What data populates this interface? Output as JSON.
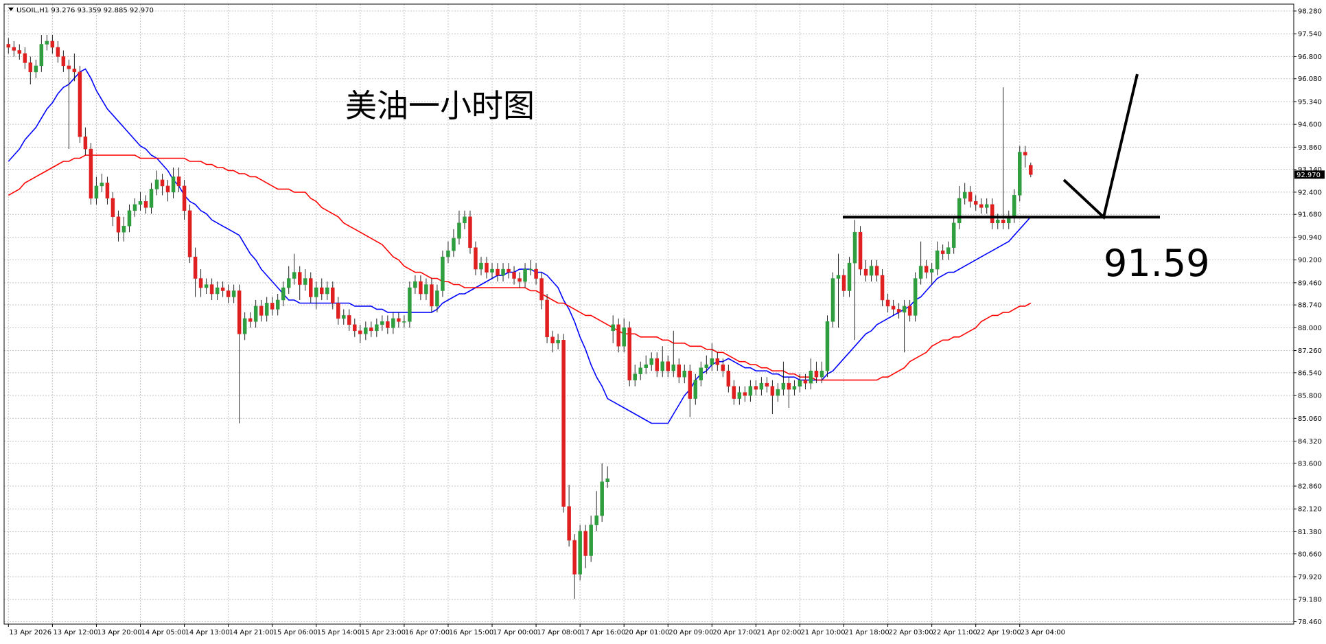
{
  "chart_data": {
    "type": "candlestick",
    "title": "美油一小时图",
    "header": {
      "symbol": "USOIL,H1",
      "values": [
        "93.276",
        "93.359",
        "92.885",
        "92.970"
      ]
    },
    "categories": [
      "13 Apr 2026",
      null,
      null,
      null,
      null,
      null,
      null,
      null,
      "13 Apr 12:00",
      null,
      null,
      null,
      null,
      null,
      null,
      null,
      "13 Apr 20:00",
      null,
      null,
      null,
      null,
      null,
      null,
      null,
      "14 Apr 05:00",
      null,
      null,
      null,
      null,
      null,
      null,
      null,
      "14 Apr 13:00",
      null,
      null,
      null,
      null,
      null,
      null,
      null,
      "14 Apr 21:00",
      null,
      null,
      null,
      null,
      null,
      null,
      null,
      "15 Apr 06:00",
      null,
      null,
      null,
      null,
      null,
      null,
      null,
      "15 Apr 14:00",
      null,
      null,
      null,
      null,
      null,
      null,
      null,
      "15 Apr 23:00",
      null,
      null,
      null,
      null,
      null,
      null,
      null,
      "16 Apr 07:00",
      null,
      null,
      null,
      null,
      null,
      null,
      null,
      "16 Apr 15:00",
      null,
      null,
      null,
      null,
      null,
      null,
      null,
      "17 Apr 00:00",
      null,
      null,
      null,
      null,
      null,
      null,
      null,
      "17 Apr 08:00",
      null,
      null,
      null,
      null,
      null,
      null,
      null,
      "17 Apr 16:00",
      null,
      null,
      null,
      null,
      null,
      null,
      null,
      "20 Apr 01:00",
      null,
      null,
      null,
      null,
      null,
      null,
      null,
      "20 Apr 09:00",
      null,
      null,
      null,
      null,
      null,
      null,
      null,
      "20 Apr 17:00",
      null,
      null,
      null,
      null,
      null,
      null,
      null,
      "21 Apr 02:00",
      null,
      null,
      null,
      null,
      null,
      null,
      null,
      "21 Apr 10:00",
      null,
      null,
      null,
      null,
      null,
      null,
      null,
      "21 Apr 18:00",
      null,
      null,
      null,
      null,
      null,
      null,
      null,
      "22 Apr 03:00",
      null,
      null,
      null,
      null,
      null,
      null,
      null,
      "22 Apr 11:00",
      null,
      null,
      null,
      null,
      null,
      null,
      null,
      "22 Apr 19:00",
      null,
      null,
      null,
      null,
      null,
      null,
      null,
      "23 Apr 04:00",
      null,
      null
    ],
    "open": [
      97.2,
      97.1,
      97.0,
      96.9,
      96.6,
      96.3,
      96.5,
      97.2,
      97.3,
      97.1,
      96.8,
      96.5,
      96.4,
      96.3,
      94.2,
      93.8,
      92.2,
      92.6,
      92.7,
      92.2,
      91.6,
      91.1,
      91.3,
      91.8,
      92.0,
      92.1,
      91.9,
      92.5,
      92.8,
      92.6,
      92.4,
      92.9,
      92.6,
      91.8,
      90.3,
      89.6,
      89.3,
      89.4,
      89.1,
      89.3,
      89.2,
      89.0,
      89.2,
      87.8,
      88.3,
      88.2,
      88.7,
      88.4,
      88.8,
      88.6,
      88.9,
      89.3,
      89.6,
      89.8,
      89.4,
      89.6,
      89.0,
      89.3,
      89.1,
      89.3,
      88.8,
      88.3,
      88.4,
      88.1,
      87.9,
      87.8,
      88.0,
      87.9,
      88.1,
      88.2,
      88.0,
      88.3,
      88.2,
      88.2,
      89.3,
      89.5,
      89.1,
      89.4,
      88.7,
      89.2,
      90.3,
      90.5,
      90.9,
      91.4,
      91.6,
      90.6,
      89.9,
      90.1,
      89.8,
      89.9,
      89.7,
      89.9,
      89.8,
      89.6,
      89.5,
      89.9,
      89.9,
      89.6,
      88.9,
      87.7,
      87.5,
      87.6,
      82.2,
      81.1,
      80.0,
      81.4,
      80.6,
      81.6,
      81.9,
      83.0,
      87.9,
      88.1,
      87.4,
      88.0,
      86.3,
      86.5,
      86.7,
      86.8,
      87.0,
      86.6,
      86.9,
      86.6,
      86.8,
      86.4,
      86.6,
      85.7,
      86.3,
      86.7,
      86.8,
      87.0,
      86.8,
      86.6,
      86.1,
      85.7,
      85.9,
      85.8,
      86.1,
      86.0,
      86.2,
      86.1,
      85.8,
      86.0,
      86.2,
      86.0,
      86.1,
      86.3,
      86.2,
      86.6,
      86.4,
      86.6,
      88.2,
      89.6,
      89.7,
      89.2,
      90.1,
      91.1,
      89.9,
      89.7,
      90.0,
      89.7,
      88.9,
      88.7,
      88.6,
      88.5,
      88.7,
      88.4,
      89.6,
      90.0,
      89.8,
      89.9,
      90.5,
      90.4,
      90.6,
      91.4,
      92.2,
      92.4,
      92.1,
      92.0,
      91.9,
      92.0,
      91.4,
      91.5,
      91.4,
      91.6,
      92.3,
      93.7,
      93.276
    ],
    "high": [
      97.4,
      97.3,
      97.2,
      97.1,
      96.8,
      96.7,
      97.5,
      97.5,
      97.5,
      97.3,
      97.0,
      96.7,
      96.9,
      96.5,
      94.5,
      94.0,
      92.9,
      93.0,
      92.9,
      92.4,
      91.8,
      91.6,
      92.0,
      92.2,
      92.4,
      92.3,
      92.7,
      93.1,
      93.0,
      92.8,
      93.2,
      93.2,
      92.8,
      92.0,
      90.6,
      89.9,
      89.6,
      89.6,
      89.5,
      89.5,
      89.4,
      89.4,
      89.4,
      88.5,
      88.5,
      88.9,
      88.9,
      89.0,
      89.0,
      89.1,
      89.5,
      90.0,
      90.4,
      90.0,
      89.9,
      89.8,
      89.5,
      89.6,
      89.5,
      89.5,
      89.0,
      88.6,
      88.6,
      88.3,
      88.1,
      88.2,
      88.2,
      88.3,
      88.4,
      88.4,
      88.5,
      88.5,
      88.4,
      89.5,
      89.7,
      89.7,
      89.6,
      89.6,
      89.4,
      90.5,
      90.8,
      91.2,
      91.8,
      91.8,
      91.8,
      90.8,
      90.3,
      90.3,
      90.1,
      90.1,
      90.1,
      90.1,
      90.0,
      89.8,
      90.1,
      90.2,
      90.1,
      89.8,
      89.1,
      87.9,
      87.8,
      87.8,
      82.9,
      81.3,
      81.6,
      81.6,
      81.9,
      82.7,
      83.6,
      83.5,
      88.4,
      88.3,
      88.3,
      88.2,
      86.8,
      86.9,
      87.1,
      87.2,
      87.2,
      87.4,
      87.1,
      87.9,
      87.0,
      86.8,
      86.8,
      86.5,
      86.9,
      87.1,
      87.5,
      87.2,
      87.0,
      86.8,
      86.3,
      86.1,
      86.1,
      86.3,
      86.3,
      86.4,
      86.4,
      86.3,
      86.2,
      86.9,
      86.4,
      86.3,
      86.5,
      86.5,
      87.0,
      86.9,
      86.9,
      88.4,
      89.8,
      90.4,
      89.9,
      90.3,
      91.5,
      91.3,
      90.2,
      90.2,
      90.2,
      89.9,
      89.1,
      88.9,
      88.8,
      88.9,
      88.9,
      89.8,
      90.8,
      90.2,
      90.1,
      90.8,
      90.7,
      90.8,
      91.6,
      92.6,
      92.7,
      92.6,
      92.3,
      92.2,
      92.2,
      92.2,
      91.7,
      95.8,
      91.8,
      92.5,
      93.9,
      93.9,
      93.359
    ],
    "low": [
      96.9,
      96.8,
      96.7,
      96.4,
      95.9,
      96.1,
      96.3,
      97.0,
      96.9,
      96.6,
      96.3,
      93.8,
      96.0,
      94.0,
      93.6,
      92.0,
      92.0,
      92.4,
      92.0,
      91.3,
      90.8,
      90.8,
      91.1,
      91.6,
      91.8,
      91.7,
      91.7,
      92.3,
      92.3,
      92.1,
      92.2,
      92.4,
      91.5,
      90.1,
      89.0,
      89.0,
      89.1,
      88.9,
      88.9,
      89.0,
      88.8,
      88.8,
      84.9,
      87.6,
      88.0,
      88.0,
      88.2,
      88.2,
      88.4,
      88.4,
      88.7,
      89.1,
      89.4,
      88.9,
      89.2,
      88.8,
      88.6,
      88.9,
      88.9,
      88.6,
      88.1,
      88.1,
      87.9,
      87.7,
      87.5,
      87.6,
      87.7,
      87.7,
      87.9,
      87.8,
      87.8,
      88.0,
      88.0,
      88.0,
      89.1,
      88.9,
      88.9,
      88.5,
      88.5,
      89.0,
      90.1,
      90.3,
      90.7,
      91.2,
      90.4,
      89.7,
      89.7,
      89.6,
      89.6,
      89.5,
      89.5,
      89.6,
      89.4,
      89.3,
      89.3,
      89.7,
      89.4,
      88.6,
      87.5,
      87.2,
      87.3,
      82.0,
      80.9,
      79.2,
      79.8,
      80.2,
      80.4,
      81.4,
      81.7,
      82.8,
      87.5,
      87.2,
      87.2,
      86.1,
      86.1,
      86.3,
      86.5,
      86.6,
      86.4,
      86.4,
      86.4,
      86.4,
      86.2,
      86.2,
      85.1,
      85.5,
      86.1,
      86.5,
      86.6,
      86.6,
      86.4,
      85.9,
      85.5,
      85.5,
      85.6,
      85.6,
      85.8,
      85.8,
      85.9,
      85.2,
      85.6,
      85.8,
      85.4,
      85.8,
      85.9,
      86.0,
      86.0,
      86.2,
      86.2,
      86.4,
      88.0,
      88.0,
      89.0,
      89.0,
      87.6,
      89.7,
      89.5,
      89.5,
      89.5,
      88.7,
      88.5,
      88.4,
      88.3,
      87.2,
      88.2,
      88.2,
      89.4,
      89.6,
      89.4,
      89.7,
      90.2,
      90.2,
      90.4,
      91.2,
      92.0,
      91.9,
      91.8,
      91.7,
      91.7,
      91.2,
      91.2,
      91.2,
      91.2,
      91.4,
      92.1,
      93.2,
      92.885
    ],
    "close": [
      97.1,
      97.0,
      96.9,
      96.6,
      96.3,
      96.5,
      97.2,
      97.3,
      97.1,
      96.8,
      96.5,
      96.4,
      96.3,
      94.2,
      93.8,
      92.2,
      92.6,
      92.7,
      92.2,
      91.6,
      91.1,
      91.3,
      91.8,
      92.0,
      92.1,
      91.9,
      92.5,
      92.8,
      92.6,
      92.4,
      92.9,
      92.6,
      91.8,
      90.3,
      89.6,
      89.3,
      89.4,
      89.1,
      89.3,
      89.2,
      89.0,
      89.2,
      87.8,
      88.3,
      88.2,
      88.7,
      88.4,
      88.8,
      88.6,
      88.9,
      89.3,
      89.6,
      89.8,
      89.4,
      89.6,
      89.0,
      89.3,
      89.1,
      89.3,
      88.8,
      88.3,
      88.4,
      88.1,
      87.9,
      87.8,
      88.0,
      87.9,
      88.1,
      88.2,
      88.0,
      88.3,
      88.2,
      88.2,
      89.3,
      89.5,
      89.1,
      89.4,
      88.7,
      89.2,
      90.3,
      90.5,
      90.9,
      91.4,
      91.6,
      90.6,
      89.9,
      90.1,
      89.8,
      89.9,
      89.7,
      89.9,
      89.8,
      89.6,
      89.5,
      89.9,
      89.9,
      89.6,
      88.9,
      87.7,
      87.5,
      87.6,
      82.2,
      81.1,
      80.0,
      81.4,
      80.6,
      81.6,
      81.9,
      83.0,
      83.1,
      88.1,
      87.4,
      88.0,
      86.3,
      86.5,
      86.7,
      86.8,
      87.0,
      86.6,
      86.9,
      86.6,
      86.8,
      86.4,
      86.6,
      85.7,
      86.3,
      86.7,
      86.8,
      87.0,
      86.8,
      86.6,
      86.1,
      85.7,
      85.9,
      85.8,
      86.1,
      86.0,
      86.2,
      86.1,
      85.8,
      86.0,
      86.2,
      86.0,
      86.1,
      86.3,
      86.2,
      86.6,
      86.4,
      86.6,
      88.2,
      89.6,
      89.7,
      89.2,
      90.1,
      91.1,
      89.9,
      89.7,
      90.0,
      89.7,
      88.9,
      88.7,
      88.6,
      88.5,
      88.7,
      88.4,
      89.6,
      90.0,
      89.8,
      89.9,
      90.5,
      90.4,
      90.6,
      91.4,
      92.2,
      92.4,
      92.1,
      92.0,
      91.9,
      92.0,
      91.4,
      91.5,
      91.4,
      91.6,
      92.3,
      93.7,
      93.6,
      92.97
    ],
    "up_color": "#2e9e3e",
    "down_color": "#e02020",
    "series": [
      {
        "color": "#0000ff",
        "values": [
          93.4,
          93.6,
          93.8,
          94.1,
          94.3,
          94.5,
          94.8,
          95.1,
          95.3,
          95.6,
          95.8,
          95.9,
          96.1,
          96.3,
          96.4,
          96.1,
          95.7,
          95.4,
          95.1,
          94.9,
          94.7,
          94.5,
          94.3,
          94.1,
          93.9,
          93.8,
          93.6,
          93.5,
          93.3,
          93.1,
          92.8,
          92.6,
          92.3,
          92.1,
          92.0,
          91.8,
          91.7,
          91.5,
          91.4,
          91.3,
          91.2,
          91.1,
          91.0,
          90.7,
          90.4,
          90.2,
          89.9,
          89.7,
          89.5,
          89.3,
          89.1,
          88.9,
          88.9,
          88.8,
          88.8,
          88.8,
          88.8,
          88.8,
          88.8,
          88.8,
          88.8,
          88.8,
          88.8,
          88.7,
          88.7,
          88.7,
          88.7,
          88.6,
          88.6,
          88.5,
          88.5,
          88.5,
          88.5,
          88.5,
          88.5,
          88.5,
          88.5,
          88.5,
          88.6,
          88.8,
          88.9,
          89.0,
          89.1,
          89.1,
          89.2,
          89.3,
          89.4,
          89.5,
          89.6,
          89.7,
          89.7,
          89.8,
          89.8,
          89.9,
          89.9,
          89.9,
          89.8,
          89.8,
          89.7,
          89.5,
          89.3,
          88.9,
          88.6,
          88.2,
          87.7,
          87.3,
          86.8,
          86.4,
          86.1,
          85.7,
          85.6,
          85.5,
          85.4,
          85.3,
          85.2,
          85.1,
          85.0,
          84.9,
          84.9,
          84.9,
          84.9,
          85.2,
          85.5,
          85.8,
          86.0,
          86.3,
          86.5,
          86.6,
          86.8,
          86.9,
          86.9,
          87.0,
          86.9,
          86.8,
          86.7,
          86.7,
          86.6,
          86.6,
          86.6,
          86.5,
          86.5,
          86.4,
          86.4,
          86.4,
          86.3,
          86.3,
          86.3,
          86.3,
          86.3,
          86.5,
          86.6,
          86.8,
          87.0,
          87.2,
          87.4,
          87.6,
          87.8,
          87.9,
          88.1,
          88.2,
          88.3,
          88.4,
          88.5,
          88.6,
          88.7,
          88.9,
          89.0,
          89.2,
          89.4,
          89.6,
          89.7,
          89.8,
          89.8,
          89.9,
          90.0,
          90.1,
          90.2,
          90.3,
          90.4,
          90.5,
          90.6,
          90.7,
          90.8,
          91.0,
          91.2,
          91.4,
          91.6
        ]
      },
      {
        "color": "#ff0000",
        "values": [
          92.3,
          92.4,
          92.5,
          92.7,
          92.8,
          92.9,
          93.0,
          93.1,
          93.2,
          93.3,
          93.4,
          93.4,
          93.5,
          93.5,
          93.6,
          93.6,
          93.6,
          93.6,
          93.6,
          93.6,
          93.6,
          93.6,
          93.6,
          93.6,
          93.5,
          93.5,
          93.5,
          93.5,
          93.5,
          93.5,
          93.5,
          93.5,
          93.5,
          93.4,
          93.4,
          93.4,
          93.3,
          93.3,
          93.2,
          93.2,
          93.1,
          93.1,
          93.0,
          93.0,
          92.9,
          92.9,
          92.8,
          92.7,
          92.6,
          92.5,
          92.5,
          92.5,
          92.4,
          92.4,
          92.4,
          92.2,
          92.1,
          91.9,
          91.8,
          91.7,
          91.6,
          91.4,
          91.3,
          91.2,
          91.1,
          91.0,
          90.9,
          90.8,
          90.7,
          90.5,
          90.3,
          90.2,
          90.0,
          89.9,
          89.8,
          89.8,
          89.7,
          89.6,
          89.6,
          89.5,
          89.5,
          89.4,
          89.4,
          89.3,
          89.3,
          89.3,
          89.3,
          89.3,
          89.3,
          89.3,
          89.3,
          89.3,
          89.3,
          89.3,
          89.3,
          89.2,
          89.2,
          89.1,
          89.0,
          88.9,
          88.8,
          88.8,
          88.7,
          88.6,
          88.5,
          88.4,
          88.4,
          88.3,
          88.2,
          88.1,
          88.0,
          87.9,
          87.8,
          87.8,
          87.8,
          87.7,
          87.7,
          87.7,
          87.7,
          87.6,
          87.6,
          87.5,
          87.5,
          87.5,
          87.4,
          87.4,
          87.4,
          87.3,
          87.3,
          87.2,
          87.2,
          87.1,
          87.0,
          86.9,
          86.9,
          86.8,
          86.8,
          86.7,
          86.7,
          86.6,
          86.6,
          86.6,
          86.5,
          86.5,
          86.4,
          86.4,
          86.4,
          86.3,
          86.3,
          86.3,
          86.3,
          86.3,
          86.3,
          86.3,
          86.3,
          86.3,
          86.3,
          86.3,
          86.3,
          86.4,
          86.4,
          86.5,
          86.6,
          86.7,
          86.9,
          87.0,
          87.1,
          87.2,
          87.4,
          87.5,
          87.6,
          87.6,
          87.7,
          87.7,
          87.8,
          87.9,
          88.0,
          88.2,
          88.3,
          88.4,
          88.4,
          88.5,
          88.5,
          88.6,
          88.7,
          88.7,
          88.8
        ]
      }
    ],
    "ylim": [
      78.46,
      98.28
    ],
    "yticks": [
      {
        "value": 98.28,
        "label": "98.280"
      },
      {
        "value": 97.54,
        "label": "97.540"
      },
      {
        "value": 96.8,
        "label": "96.800"
      },
      {
        "value": 96.08,
        "label": "96.080"
      },
      {
        "value": 95.34,
        "label": "95.340"
      },
      {
        "value": 94.6,
        "label": "94.600"
      },
      {
        "value": 93.86,
        "label": "93.860"
      },
      {
        "value": 93.14,
        "label": "93.140"
      },
      {
        "value": 92.4,
        "label": "92.400"
      },
      {
        "value": 91.68,
        "label": "91.680"
      },
      {
        "value": 90.94,
        "label": "90.940"
      },
      {
        "value": 90.2,
        "label": "90.200"
      },
      {
        "value": 89.46,
        "label": "89.460"
      },
      {
        "value": 88.74,
        "label": "88.740"
      },
      {
        "value": 88,
        "label": "88.000"
      },
      {
        "value": 87.26,
        "label": "87.260"
      },
      {
        "value": 86.54,
        "label": "86.540"
      },
      {
        "value": 85.8,
        "label": "85.800"
      },
      {
        "value": 85.06,
        "label": "85.060"
      },
      {
        "value": 84.32,
        "label": "84.320"
      },
      {
        "value": 83.6,
        "label": "83.600"
      },
      {
        "value": 82.86,
        "label": "82.860"
      },
      {
        "value": 82.12,
        "label": "82.120"
      },
      {
        "value": 81.38,
        "label": "81.380"
      },
      {
        "value": 80.66,
        "label": "80.660"
      },
      {
        "value": 79.92,
        "label": "79.920"
      },
      {
        "value": 79.18,
        "label": "79.180"
      },
      {
        "value": 78.46,
        "label": "78.460"
      }
    ],
    "grid": true,
    "level": 91.59
  }
}
